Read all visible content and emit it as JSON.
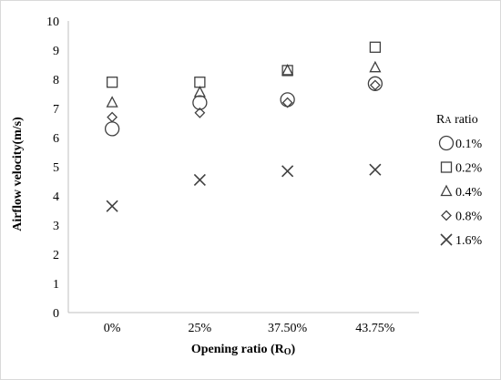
{
  "chart_data": {
    "type": "scatter",
    "categories": [
      "0%",
      "25%",
      "37.50%",
      "43.75%"
    ],
    "xlabel": {
      "main": "Opening ratio (R",
      "sub": "O",
      "end": ")"
    },
    "ylabel": "Airflow velocity(m/s)",
    "ylim": [
      0,
      10
    ],
    "yticks": [
      0,
      1,
      2,
      3,
      4,
      5,
      6,
      7,
      8,
      9,
      10
    ],
    "grid": false,
    "legend_position": "right",
    "legend_title": {
      "main": "R",
      "sub": "A",
      "end": " ratio"
    },
    "series": [
      {
        "name": "0.1%",
        "marker": "circle",
        "values": [
          6.3,
          7.2,
          7.3,
          7.85
        ]
      },
      {
        "name": "0.2%",
        "marker": "square",
        "values": [
          7.9,
          7.9,
          8.3,
          9.1
        ]
      },
      {
        "name": "0.4%",
        "marker": "triangle",
        "values": [
          7.2,
          7.55,
          8.3,
          8.4
        ]
      },
      {
        "name": "0.8%",
        "marker": "diamond",
        "values": [
          6.7,
          6.85,
          7.2,
          7.8
        ]
      },
      {
        "name": "1.6%",
        "marker": "cross",
        "values": [
          3.65,
          4.55,
          4.85,
          4.9
        ]
      }
    ],
    "colors": {
      "marker": "#404040",
      "axis": "#bfbfbf",
      "text": "#000000"
    }
  }
}
